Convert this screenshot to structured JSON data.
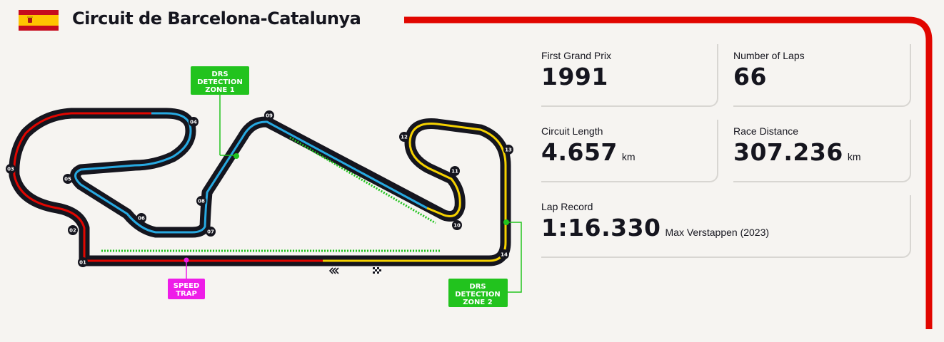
{
  "header": {
    "flag_icon": "spain-flag-icon",
    "title": "Circuit de Barcelona-Catalunya",
    "accent_color": "#e10600"
  },
  "stats": {
    "first_grand_prix": {
      "label": "First Grand Prix",
      "value": "1991"
    },
    "number_of_laps": {
      "label": "Number of Laps",
      "value": "66"
    },
    "circuit_length": {
      "label": "Circuit Length",
      "value": "4.657",
      "unit": "km"
    },
    "race_distance": {
      "label": "Race Distance",
      "value": "307.236",
      "unit": "km"
    },
    "lap_record": {
      "label": "Lap Record",
      "value": "1:16.330",
      "holder": "Max Verstappen (2023)"
    }
  },
  "track_map": {
    "drs_detection_zone_1": [
      "DRS",
      "DETECTION",
      "ZONE 1"
    ],
    "drs_detection_zone_2": [
      "DRS",
      "DETECTION",
      "ZONE 2"
    ],
    "speed_trap": [
      "SPEED",
      "TRAP"
    ],
    "turns": [
      "01",
      "02",
      "03",
      "04",
      "05",
      "06",
      "07",
      "08",
      "09",
      "10",
      "11",
      "12",
      "13",
      "14"
    ],
    "colors": {
      "sector_1": "#e10600",
      "sector_2": "#27a9e1",
      "sector_3": "#f5d100",
      "drs": "#22c31e",
      "speed_trap": "#ee1ce8",
      "track": "#15151e"
    },
    "icons": [
      "drs-activation-chevrons-icon",
      "start-finish-flag-icon"
    ]
  }
}
